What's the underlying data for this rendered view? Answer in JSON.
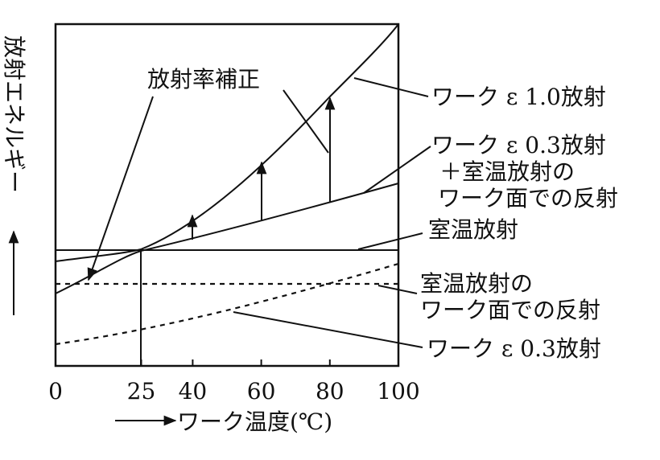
{
  "diagram": {
    "y_axis_label": "放射エネルギー",
    "x_axis_label": "ワーク温度(℃)",
    "x_ticks": [
      0,
      25,
      40,
      60,
      80,
      100
    ],
    "annotations": {
      "correction": "放射率補正",
      "work_e10": [
        "ワーク ε 1.0放射"
      ],
      "work_e03_plus": [
        "ワーク ε 0.3放射",
        "＋室温放射の",
        "ワーク面での反射"
      ],
      "room": [
        "室温放射"
      ],
      "room_reflect": [
        "室温放射の",
        "ワーク面での反射"
      ],
      "work_e03": [
        "ワーク ε 0.3放射"
      ]
    }
  }
}
